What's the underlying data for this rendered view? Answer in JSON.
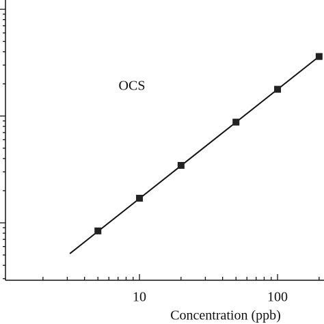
{
  "chart_data": {
    "type": "scatter",
    "annotation": "OCS",
    "x_label": "Concentration (ppb)",
    "log_x": true,
    "log_y": true,
    "x": [
      5,
      10,
      20,
      50,
      100,
      200
    ],
    "series": [
      {
        "color": "#222222",
        "values": [
          0.84,
          1.7,
          3.45,
          8.77,
          17.8,
          36.1
        ]
      }
    ],
    "fit": {
      "x": [
        3.13,
        200
      ],
      "y": [
        0.515,
        36.1
      ],
      "color": "#111111"
    },
    "xlim": [
      1.07,
      217
    ],
    "ylim": [
      0.29,
      122
    ],
    "xticks": [
      10,
      100
    ],
    "xminor": [
      2,
      3,
      4,
      5,
      6,
      7,
      8,
      9,
      20,
      30,
      40,
      50,
      60,
      70,
      80,
      90,
      200
    ],
    "yticks": [
      1,
      10,
      100
    ],
    "yminor": [
      0.3,
      0.4,
      0.5,
      0.6,
      0.7,
      0.8,
      0.9,
      2,
      3,
      4,
      5,
      6,
      7,
      8,
      9,
      20,
      30,
      40,
      50,
      60,
      70,
      80,
      90
    ]
  }
}
